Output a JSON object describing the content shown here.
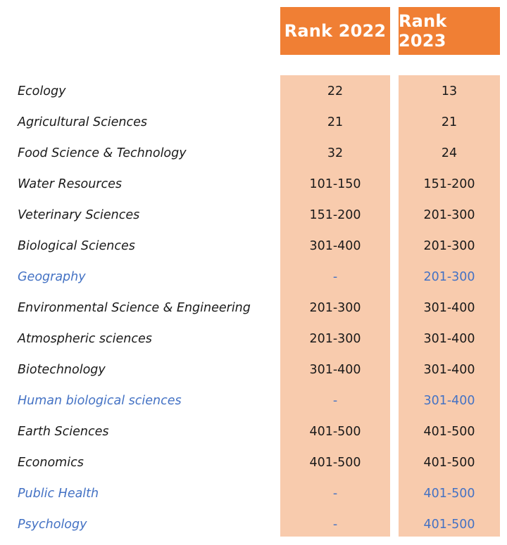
{
  "header": {
    "col_2022": "Rank 2022",
    "col_2023": "Rank 2023"
  },
  "colors": {
    "header_bg": "#f07f34",
    "column_bg": "#f8cbad",
    "new_entry_text": "#4472c4"
  },
  "rows": [
    {
      "subject": "Ecology",
      "rank_2022": "22",
      "rank_2023": "13",
      "new": false
    },
    {
      "subject": "Agricultural Sciences",
      "rank_2022": "21",
      "rank_2023": "21",
      "new": false
    },
    {
      "subject": "Food Science & Technology",
      "rank_2022": "32",
      "rank_2023": "24",
      "new": false
    },
    {
      "subject": "Water Resources",
      "rank_2022": "101-150",
      "rank_2023": "151-200",
      "new": false
    },
    {
      "subject": "Veterinary Sciences",
      "rank_2022": "151-200",
      "rank_2023": "201-300",
      "new": false
    },
    {
      "subject": "Biological Sciences",
      "rank_2022": "301-400",
      "rank_2023": "201-300",
      "new": false
    },
    {
      "subject": "Geography",
      "rank_2022": "-",
      "rank_2023": "201-300",
      "new": true
    },
    {
      "subject": "Environmental Science & Engineering",
      "rank_2022": "201-300",
      "rank_2023": "301-400",
      "new": false
    },
    {
      "subject": "Atmospheric sciences",
      "rank_2022": "201-300",
      "rank_2023": "301-400",
      "new": false
    },
    {
      "subject": "Biotechnology",
      "rank_2022": "301-400",
      "rank_2023": "301-400",
      "new": false
    },
    {
      "subject": "Human biological sciences",
      "rank_2022": "-",
      "rank_2023": "301-400",
      "new": true
    },
    {
      "subject": "Earth Sciences",
      "rank_2022": "401-500",
      "rank_2023": "401-500",
      "new": false
    },
    {
      "subject": "Economics",
      "rank_2022": "401-500",
      "rank_2023": "401-500",
      "new": false
    },
    {
      "subject": "Public Health",
      "rank_2022": "-",
      "rank_2023": "401-500",
      "new": true
    },
    {
      "subject": "Psychology",
      "rank_2022": "-",
      "rank_2023": "401-500",
      "new": true
    }
  ]
}
